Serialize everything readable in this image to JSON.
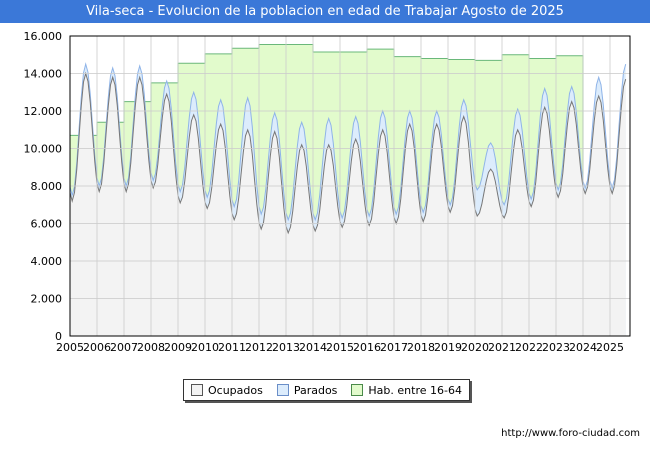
{
  "header": {
    "title": "Vila-seca - Evolucion de la poblacion en edad de Trabajar Agosto de 2025"
  },
  "footer": {
    "url": "http://www.foro-ciudad.com"
  },
  "colors": {
    "ocupados": "#f3f3f3",
    "ocupados_line": "#777777",
    "parados": "#dcecfc",
    "parados_line": "#8fb4e8",
    "hab": "#e2fbcc",
    "hab_line": "#6ab87a",
    "title_bg": "#3b78d8"
  },
  "chart_data": {
    "type": "area",
    "title": "Vila-seca - Evolucion de la poblacion en edad de Trabajar Agosto de 2025",
    "xlabel": "",
    "ylabel": "",
    "ylim": [
      0,
      16000
    ],
    "yticks": [
      "0",
      "2.000",
      "4.000",
      "6.000",
      "8.000",
      "10.000",
      "12.000",
      "14.000",
      "16.000"
    ],
    "xticks": [
      "2005",
      "2006",
      "2007",
      "2008",
      "2009",
      "2010",
      "2011",
      "2012",
      "2013",
      "2014",
      "2015",
      "2016",
      "2017",
      "2018",
      "2019",
      "2020",
      "2021",
      "2022",
      "2023",
      "2024",
      "2025"
    ],
    "grid": true,
    "legend_position": "bottom",
    "legend": [
      "Ocupados",
      "Parados",
      "Hab. entre 16-64"
    ],
    "years": [
      2005,
      2006,
      2007,
      2008,
      2009,
      2010,
      2011,
      2012,
      2013,
      2014,
      2015,
      2016,
      2017,
      2018,
      2019,
      2020,
      2021,
      2022,
      2023,
      2024,
      2025
    ],
    "ocupados_winter_min": [
      7200,
      7700,
      7700,
      7900,
      7100,
      6800,
      6200,
      5700,
      5500,
      5600,
      5800,
      5900,
      6000,
      6100,
      6600,
      6400,
      6300,
      6900,
      7400,
      7600,
      7600
    ],
    "ocupados_summer_peak": [
      14000,
      13800,
      13800,
      12900,
      11800,
      11300,
      11000,
      10900,
      10200,
      10200,
      10500,
      11000,
      11300,
      11300,
      11700,
      8900,
      11000,
      12200,
      12500,
      12800,
      13700
    ],
    "total_activos_winter_min": [
      7500,
      8000,
      8000,
      8300,
      7700,
      7400,
      6900,
      6500,
      6200,
      6200,
      6300,
      6400,
      6500,
      6600,
      7000,
      7800,
      7000,
      7300,
      7800,
      7900,
      7900
    ],
    "total_activos_summer_peak": [
      14500,
      14300,
      14400,
      13600,
      13000,
      12600,
      12700,
      11900,
      11400,
      11600,
      11700,
      12000,
      12000,
      12000,
      12600,
      10300,
      12100,
      13200,
      13300,
      13800,
      14500
    ],
    "hab_16_64": [
      10700,
      11400,
      12500,
      13500,
      14550,
      15050,
      15350,
      15550,
      15550,
      15150,
      15150,
      15300,
      14900,
      14800,
      14750,
      14700,
      15000,
      14800,
      14950
    ],
    "last_month": "2025-08"
  }
}
